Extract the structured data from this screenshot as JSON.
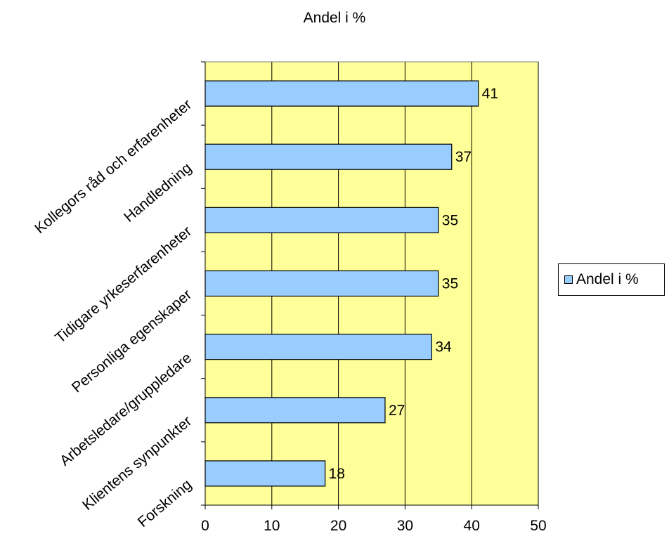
{
  "chart_data": {
    "type": "bar",
    "orientation": "horizontal",
    "title": "Andel i %",
    "categories": [
      "Kollegors råd och erfarenheter",
      "Handledning",
      "Tidigare yrkeserfarenheter",
      "Personliga egenskaper",
      "Arbetsledare/gruppledare",
      "Klientens synpunkter",
      "Forskning"
    ],
    "series": [
      {
        "name": "Andel i %",
        "values": [
          41,
          37,
          35,
          35,
          34,
          27,
          18
        ]
      }
    ],
    "xlim": [
      0,
      50
    ],
    "x_ticks": [
      "0",
      "10",
      "20",
      "30",
      "40",
      "50"
    ],
    "grid": true,
    "legend_position": "right",
    "colors": {
      "bar": "#99ccff",
      "plot_background": "#ffff99",
      "gridline": "#000000"
    }
  }
}
